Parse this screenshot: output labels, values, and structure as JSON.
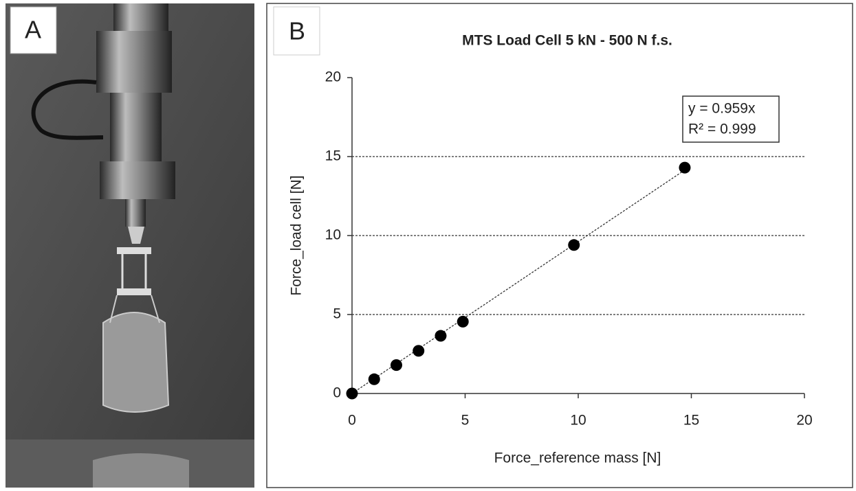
{
  "panels": {
    "a": "A",
    "b": "B"
  },
  "chart_data": {
    "type": "scatter",
    "title": "MTS Load Cell 5 kN - 500 N f.s.",
    "x_label": "Force_reference mass [N]",
    "y_label": "Force_load cell [N]",
    "x": [
      0,
      0.98,
      1.96,
      2.94,
      3.92,
      4.9,
      9.81,
      14.71
    ],
    "values": [
      0,
      0.9,
      1.8,
      2.7,
      3.65,
      4.55,
      9.4,
      14.3
    ],
    "color": "#000000",
    "xlim": [
      0,
      20
    ],
    "ylim": [
      0,
      20
    ],
    "xticks": [
      0,
      5,
      10,
      15,
      20
    ],
    "yticks": [
      0,
      5,
      10,
      15,
      20
    ],
    "grid": true,
    "trendline": true,
    "annotations": [
      "y = 0.959x",
      "R² = 0.999"
    ]
  }
}
